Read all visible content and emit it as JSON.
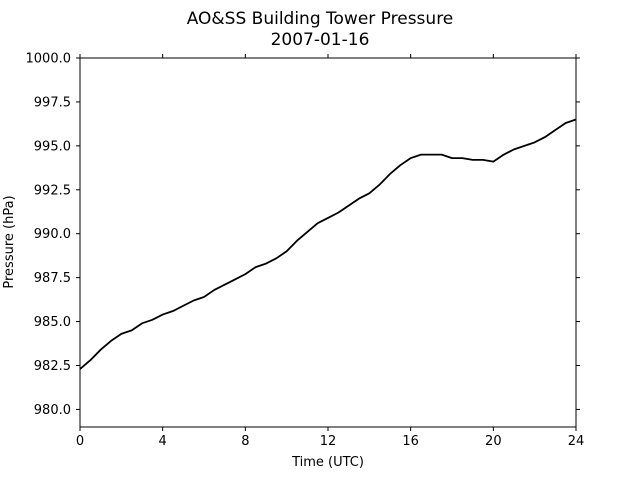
{
  "chart_data": {
    "type": "line",
    "title": "AO&SS Building Tower Pressure",
    "subtitle": "2007-01-16",
    "xlabel": "Time (UTC)",
    "ylabel": "Pressure (hPa)",
    "xlim": [
      0,
      24
    ],
    "ylim": [
      979.0,
      1000.0
    ],
    "xticks": [
      0,
      4,
      8,
      12,
      16,
      20,
      24
    ],
    "xtick_labels": [
      "0",
      "4",
      "8",
      "12",
      "16",
      "20",
      "24"
    ],
    "yticks": [
      980.0,
      982.5,
      985.0,
      987.5,
      990.0,
      992.5,
      995.0,
      997.5,
      1000.0
    ],
    "ytick_labels": [
      "980.0",
      "982.5",
      "985.0",
      "987.5",
      "990.0",
      "992.5",
      "995.0",
      "997.5",
      "1000.0"
    ],
    "grid": false,
    "line_color": "#000000",
    "series": [
      {
        "x": [
          0,
          0.5,
          1,
          1.5,
          2,
          2.5,
          3,
          3.5,
          4,
          4.5,
          5,
          5.5,
          6,
          6.5,
          7,
          7.5,
          8,
          8.5,
          9,
          9.5,
          10,
          10.5,
          11,
          11.5,
          12,
          12.5,
          13,
          13.5,
          14,
          14.5,
          15,
          15.5,
          16,
          16.5,
          17,
          17.5,
          18,
          18.5,
          19,
          19.5,
          20,
          20.5,
          21,
          21.5,
          22,
          22.5,
          23,
          23.5,
          24
        ],
        "y": [
          982.3,
          982.8,
          983.4,
          983.9,
          984.3,
          984.5,
          984.9,
          985.1,
          985.4,
          985.6,
          985.9,
          986.2,
          986.4,
          986.8,
          987.1,
          987.4,
          987.7,
          988.1,
          988.3,
          988.6,
          989.0,
          989.6,
          990.1,
          990.6,
          990.9,
          991.2,
          991.6,
          992.0,
          992.3,
          992.8,
          993.4,
          993.9,
          994.3,
          994.5,
          994.5,
          994.5,
          994.3,
          994.3,
          994.2,
          994.2,
          994.1,
          994.5,
          994.8,
          995.0,
          995.2,
          995.5,
          995.9,
          996.3,
          996.5
        ]
      }
    ]
  }
}
